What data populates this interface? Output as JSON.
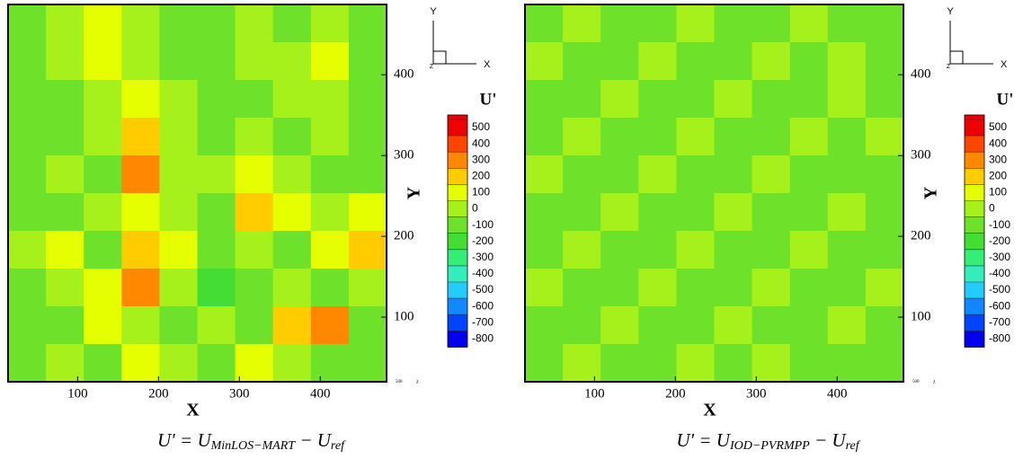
{
  "chart_data": [
    {
      "type": "contour",
      "xlabel": "X",
      "ylabel": "Y",
      "xlim": [
        14,
        482
      ],
      "ylim": [
        20,
        487
      ],
      "xticks": [
        100,
        200,
        300,
        400
      ],
      "yticks": [
        100,
        200,
        300,
        400
      ],
      "z": [
        [
          -100,
          0,
          100,
          0,
          -100,
          -100,
          0,
          -100,
          0,
          -100
        ],
        [
          -100,
          0,
          100,
          0,
          -100,
          -100,
          0,
          0,
          100,
          -100
        ],
        [
          -100,
          -100,
          0,
          100,
          0,
          -100,
          -100,
          0,
          0,
          -100
        ],
        [
          -100,
          -100,
          0,
          200,
          0,
          -100,
          0,
          -100,
          0,
          -100
        ],
        [
          -100,
          0,
          -100,
          300,
          0,
          0,
          100,
          0,
          -100,
          -100
        ],
        [
          -100,
          -100,
          0,
          100,
          0,
          -100,
          200,
          100,
          0,
          100
        ],
        [
          0,
          100,
          -100,
          200,
          100,
          -100,
          0,
          -100,
          100,
          200
        ],
        [
          -100,
          0,
          100,
          300,
          0,
          -200,
          -100,
          0,
          -100,
          0
        ],
        [
          -100,
          -100,
          100,
          0,
          -100,
          0,
          -100,
          200,
          300,
          -100
        ],
        [
          -100,
          0,
          -100,
          100,
          0,
          -100,
          100,
          0,
          -100,
          -100
        ]
      ],
      "colorbar": {
        "title": "U'",
        "levels": [
          500,
          400,
          300,
          200,
          100,
          0,
          -100,
          -200,
          -300,
          -400,
          -500,
          -600,
          -700,
          -800
        ],
        "colors": [
          "#ee0000",
          "#ff4500",
          "#ff8800",
          "#ffcc00",
          "#e6ff00",
          "#a6f01c",
          "#6ee22a",
          "#44dd33",
          "#33ee77",
          "#33eebb",
          "#22ccff",
          "#1188ff",
          "#0044ff",
          "#0000ee"
        ]
      },
      "triad": [
        "Y",
        "X",
        "Z"
      ],
      "corner": [
        "500",
        "z"
      ],
      "caption": {
        "lhs": "U′ = U",
        "sub": "MinLOS−MART",
        "mid": " − U",
        "sub2": "ref"
      }
    },
    {
      "type": "contour",
      "xlabel": "X",
      "ylabel": "Y",
      "xlim": [
        14,
        482
      ],
      "ylim": [
        20,
        487
      ],
      "xticks": [
        100,
        200,
        300,
        400
      ],
      "yticks": [
        100,
        200,
        300,
        400
      ],
      "z": [
        [
          -100,
          0,
          -100,
          -100,
          0,
          -100,
          -100,
          0,
          -100,
          -100
        ],
        [
          0,
          -100,
          -100,
          0,
          -100,
          -100,
          0,
          -100,
          0,
          -100
        ],
        [
          -100,
          -100,
          0,
          -100,
          -100,
          0,
          -100,
          -100,
          0,
          -100
        ],
        [
          -100,
          0,
          -100,
          -100,
          0,
          -100,
          -100,
          0,
          -100,
          0
        ],
        [
          0,
          -100,
          -100,
          0,
          -100,
          -100,
          0,
          -100,
          -100,
          -100
        ],
        [
          -100,
          -100,
          0,
          -100,
          -100,
          0,
          -100,
          -100,
          0,
          -100
        ],
        [
          -100,
          0,
          -100,
          -100,
          0,
          -100,
          -100,
          0,
          -100,
          -100
        ],
        [
          0,
          -100,
          -100,
          0,
          -100,
          -100,
          0,
          -100,
          -100,
          0
        ],
        [
          -100,
          -100,
          0,
          -100,
          -100,
          0,
          -100,
          -100,
          0,
          -100
        ],
        [
          -100,
          0,
          -100,
          -100,
          0,
          -100,
          0,
          -100,
          -100,
          -100
        ]
      ],
      "colorbar": {
        "title": "U'",
        "levels": [
          500,
          400,
          300,
          200,
          100,
          0,
          -100,
          -200,
          -300,
          -400,
          -500,
          -600,
          -700,
          -800
        ],
        "colors": [
          "#ee0000",
          "#ff4500",
          "#ff8800",
          "#ffcc00",
          "#e6ff00",
          "#a6f01c",
          "#6ee22a",
          "#44dd33",
          "#33ee77",
          "#33eebb",
          "#22ccff",
          "#1188ff",
          "#0044ff",
          "#0000ee"
        ]
      },
      "triad": [
        "Y",
        "X",
        "Z"
      ],
      "corner": [
        "500",
        "z"
      ],
      "caption": {
        "lhs": "U′ = U",
        "sub": "IOD−PVRMPP",
        "mid": " − U",
        "sub2": "ref"
      }
    }
  ]
}
